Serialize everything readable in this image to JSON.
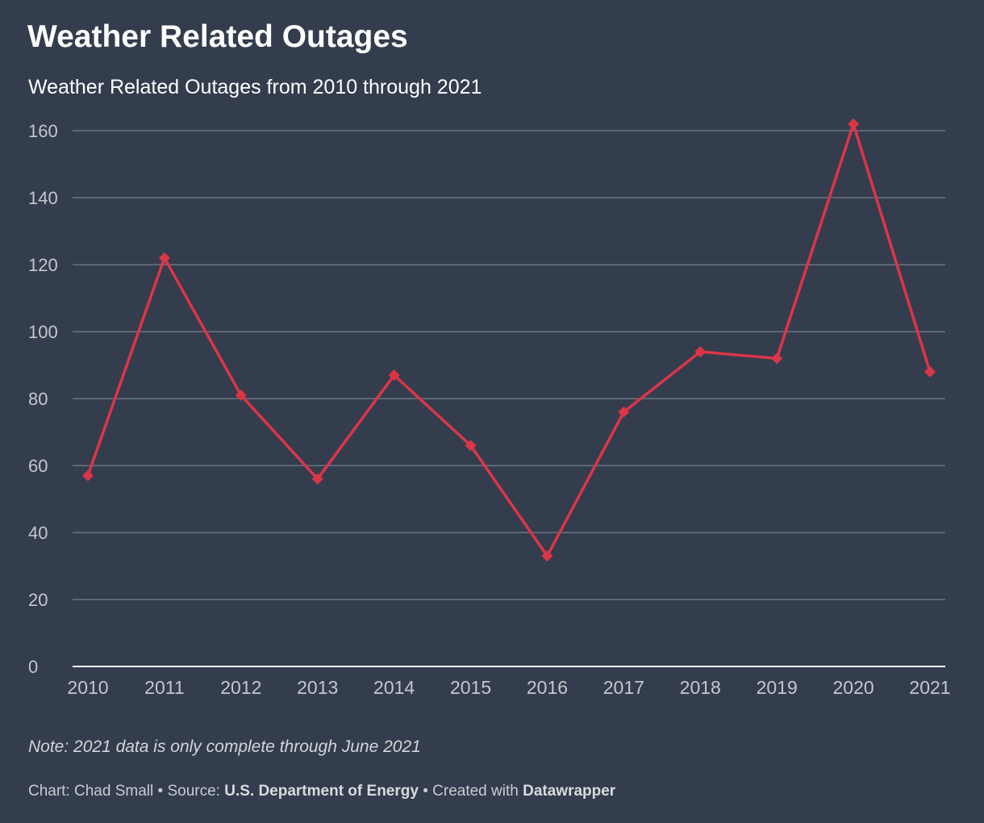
{
  "chart_data": {
    "type": "line",
    "title": "Weather Related Outages",
    "subtitle": "Weather Related Outages from 2010 through 2021",
    "categories": [
      "2010",
      "2011",
      "2012",
      "2013",
      "2014",
      "2015",
      "2016",
      "2017",
      "2018",
      "2019",
      "2020",
      "2021"
    ],
    "series": [
      {
        "values": [
          57,
          122,
          81,
          56,
          87,
          66,
          33,
          76,
          94,
          92,
          162,
          88
        ]
      }
    ],
    "y_ticks": [
      "0",
      "20",
      "40",
      "60",
      "80",
      "100",
      "120",
      "140",
      "160"
    ],
    "ylim": [
      0,
      160
    ],
    "grid": true,
    "marker": "diamond",
    "colors": {
      "background": "#333d4d",
      "line": "#dc3548",
      "grid": "#6e7581",
      "axis": "#ffffff",
      "tick_text": "#c4c7cc"
    }
  },
  "note": "Note: 2021 data is only complete through June 2021",
  "footer": {
    "chart_label": "Chart: Chad Small",
    "separator": " • ",
    "source_label": "Source: ",
    "source_name": "U.S. Department of Energy",
    "created_label": "Created with ",
    "created_tool": "Datawrapper"
  }
}
